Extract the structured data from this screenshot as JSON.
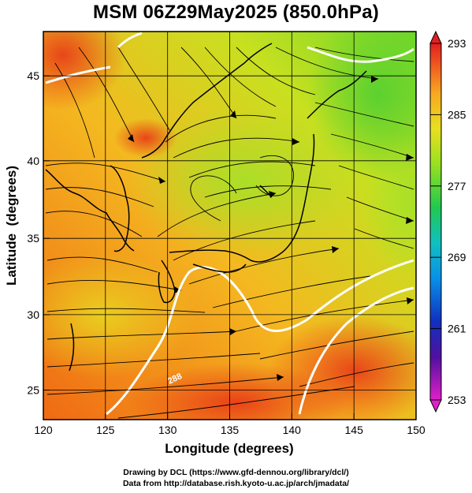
{
  "page": {
    "title": "MSM 06Z29May2025 (850.0hPa)",
    "credit_line1": "Drawing by DCL (https://www.gfd-dennou.org/library/dcl/)",
    "credit_line2": "Data from http://database.rish.kyoto-u.ac.jp/arch/jmadata/"
  },
  "chart_data": {
    "type": "heatmap",
    "title": "MSM 06Z29May2025 (850.0hPa)",
    "xlabel": "Longitude (degrees)",
    "ylabel": "Latitude  (degrees)",
    "xlim": [
      120,
      150
    ],
    "ylim": [
      22.4,
      47.6
    ],
    "x_ticks": [
      "120",
      "125",
      "130",
      "135",
      "140",
      "145",
      "150"
    ],
    "y_ticks": [
      "25",
      "30",
      "35",
      "40",
      "45"
    ],
    "grid": true,
    "overlay": "streamlines",
    "contour_label": "288",
    "colorbar": {
      "min": 253,
      "max": 293,
      "ticks": [
        "253",
        "261",
        "269",
        "277",
        "285",
        "293"
      ],
      "colors": [
        "#e020c8",
        "#5010a0",
        "#0840d8",
        "#00a8e8",
        "#18c0a0",
        "#30c030",
        "#a0e020",
        "#e8e020",
        "#f8b020",
        "#f06020",
        "#e02020"
      ]
    },
    "field_samples": [
      {
        "lon": 122,
        "lat": 46,
        "value": 291
      },
      {
        "lon": 128,
        "lat": 40,
        "value": 288
      },
      {
        "lon": 127,
        "lat": 33,
        "value": 284
      },
      {
        "lon": 132,
        "lat": 38,
        "value": 282
      },
      {
        "lon": 138,
        "lat": 38,
        "value": 281
      },
      {
        "lon": 145,
        "lat": 43,
        "value": 280
      },
      {
        "lon": 149,
        "lat": 46,
        "value": 278
      },
      {
        "lon": 148,
        "lat": 38,
        "value": 282
      },
      {
        "lon": 125,
        "lat": 27,
        "value": 286
      },
      {
        "lon": 135,
        "lat": 26,
        "value": 289
      },
      {
        "lon": 145,
        "lat": 28,
        "value": 290
      },
      {
        "lon": 140,
        "lat": 33,
        "value": 286
      }
    ]
  }
}
